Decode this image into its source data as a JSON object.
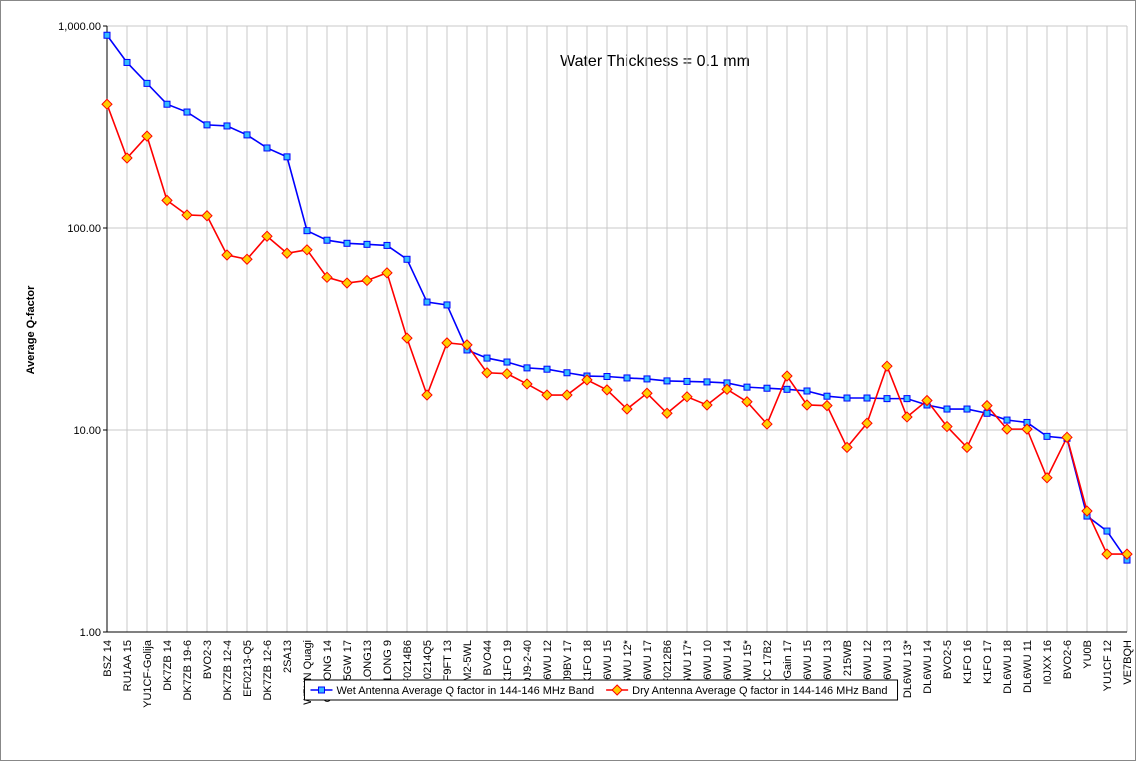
{
  "chart_data": {
    "type": "line",
    "annotation": "Water Thickness = 0.1 mm",
    "y_label": "Average Q-factor",
    "log_scale": true,
    "grid": true,
    "legend": "bottom",
    "ylim": [
      1,
      1000
    ],
    "yticks": [
      {
        "value": 1,
        "label": "1.00"
      },
      {
        "value": 10,
        "label": "10.00"
      },
      {
        "value": 100,
        "label": "100.00"
      },
      {
        "value": 1000,
        "label": "1,000.00"
      }
    ],
    "categories": [
      "BSZ 14",
      "RU1AA 15",
      "YU1CF-Golija",
      "DK7ZB 14",
      "DK7ZB 19-6",
      "BVO2-3",
      "DK7ZB 12-4",
      "EF0213-Q5",
      "DK7ZB 12-6",
      "2SA13",
      "W5UN Quagi",
      "OBLONG 14",
      "K5GW 17",
      "OBLONG13",
      "OBLONG 9",
      "EF0214B6",
      "EF0214Q5",
      "F9FT 13",
      "M2-5WL",
      "BVO44",
      "K1FO 19",
      "DJ9-2-40",
      "DL6WU 12",
      "DJ9BV 17",
      "K1FO 18",
      "DL6WU 15",
      "DL6WU 12*",
      "DL6WU 17",
      "EF0212B6",
      "DL6WU 17*",
      "DL6WU 10",
      "DL6WU 14",
      "DL6WU 15*",
      "CC 17B2",
      "HyGain 17",
      "DL6WU 15",
      "DL6WU 13",
      "CC 215WB",
      "DL6WU 12",
      "DL6WU 13",
      "DL6WU 13*",
      "DL6WU 14",
      "BVO2-5",
      "K1FO 16",
      "K1FO 17",
      "DL6WU 18",
      "DL6WU 11",
      "I0JXX 16",
      "BVO2-6",
      "YU0B",
      "YU1CF 12",
      "VE7BQH"
    ],
    "series": [
      {
        "name": "Wet Antenna Average Q factor in 144-146 MHz Band",
        "color": "#0000ff",
        "marker": "square",
        "marker_color": "#33bbff",
        "values": [
          900,
          660,
          520,
          410,
          375,
          324,
          320,
          289,
          249,
          225,
          97,
          87,
          84,
          83,
          82,
          70,
          43,
          41.6,
          24.9,
          22.7,
          21.7,
          20.3,
          20.0,
          19.2,
          18.5,
          18.4,
          18.1,
          17.9,
          17.5,
          17.4,
          17.3,
          17.1,
          16.3,
          16.1,
          15.9,
          15.6,
          14.7,
          14.4,
          14.4,
          14.3,
          14.3,
          13.3,
          12.7,
          12.7,
          12.1,
          11.2,
          10.9,
          9.3,
          9.1,
          3.75,
          3.16,
          2.27
        ]
      },
      {
        "name": "Dry Antenna Average Q factor in 144-146 MHz Band",
        "color": "#ff0000",
        "marker": "diamond",
        "marker_color": "#ffcc00",
        "values": [
          410,
          222,
          285,
          137,
          116,
          115,
          73.5,
          70,
          91,
          75,
          78,
          57,
          53.4,
          55,
          60,
          28.5,
          14.9,
          27,
          26.4,
          19.2,
          19.0,
          16.9,
          14.9,
          14.9,
          17.7,
          15.8,
          12.7,
          15.2,
          12.1,
          14.6,
          13.3,
          15.9,
          13.8,
          10.7,
          18.5,
          13.3,
          13.2,
          8.2,
          10.8,
          20.7,
          11.6,
          14.0,
          10.4,
          8.2,
          13.2,
          10.1,
          10.1,
          5.8,
          9.2,
          3.97,
          2.43,
          2.43
        ]
      }
    ]
  }
}
